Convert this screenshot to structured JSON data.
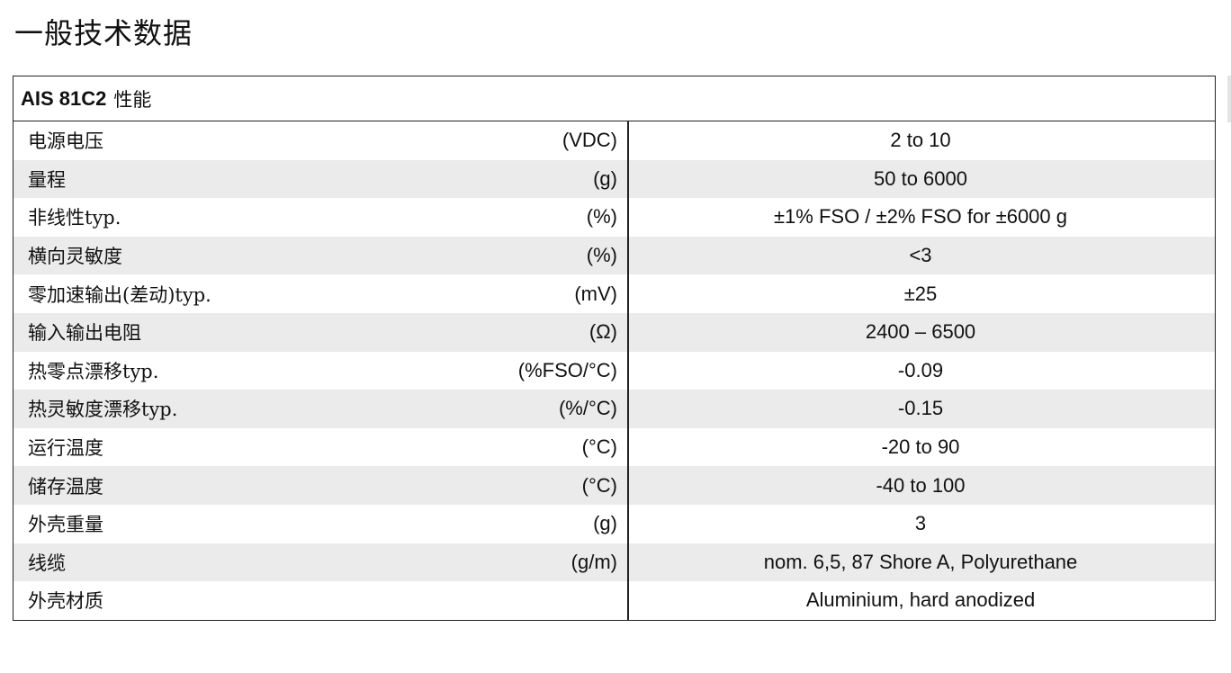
{
  "page": {
    "title": "一般技术数据"
  },
  "table": {
    "header": {
      "model": "AIS 81C2",
      "suffix": "性能"
    },
    "rows": [
      {
        "label": "电源电压",
        "unit": "(VDC)",
        "value": "2 to 10"
      },
      {
        "label": "量程",
        "unit": "(g)",
        "value": "50 to 6000"
      },
      {
        "label": "非线性typ.",
        "unit": "(%)",
        "value": "±1% FSO / ±2% FSO for ±6000 g"
      },
      {
        "label": "横向灵敏度",
        "unit": "(%)",
        "value": "<3"
      },
      {
        "label": "零加速输出(差动)typ.",
        "unit": "(mV)",
        "value": "±25"
      },
      {
        "label": "输入输出电阻",
        "unit": "(Ω)",
        "value": "2400 – 6500"
      },
      {
        "label": "热零点漂移typ.",
        "unit": "(%FSO/°C)",
        "value": "-0.09"
      },
      {
        "label": "热灵敏度漂移typ.",
        "unit": "(%/°C)",
        "value": "-0.15"
      },
      {
        "label": "运行温度",
        "unit": "(°C)",
        "value": "-20 to 90"
      },
      {
        "label": "储存温度",
        "unit": "(°C)",
        "value": "-40 to 100"
      },
      {
        "label": "外壳重量",
        "unit": "(g)",
        "value": "3"
      },
      {
        "label": "线缆",
        "unit": "(g/m)",
        "value": "nom. 6,5, 87 Shore A, Polyurethane"
      },
      {
        "label": "外壳材质",
        "unit": "",
        "value": "Aluminium, hard anodized"
      }
    ]
  }
}
